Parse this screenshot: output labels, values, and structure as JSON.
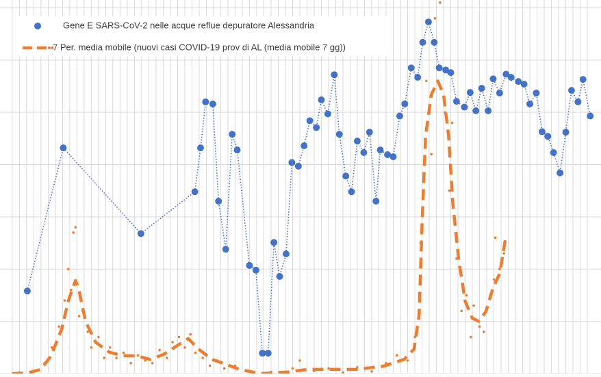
{
  "chart_data": {
    "type": "scatter-line",
    "xlim": [
      -1.7,
      81.9
    ],
    "xticks": [
      0,
      1,
      2,
      3,
      4,
      5,
      6,
      7,
      8,
      9,
      10,
      11,
      12,
      13,
      14,
      15,
      16,
      17,
      18,
      19,
      20,
      21,
      22,
      23,
      24,
      25,
      26,
      27,
      28,
      29,
      30,
      31,
      32,
      33,
      34,
      35,
      36,
      37,
      38,
      39,
      40,
      41,
      42,
      43,
      44,
      45,
      46,
      47,
      48,
      49,
      50,
      51,
      52,
      53,
      54,
      55,
      56,
      57,
      58,
      59,
      60,
      61,
      62,
      63,
      64,
      65,
      66,
      67,
      68,
      69,
      70,
      71,
      72,
      73,
      74,
      75,
      76,
      77,
      78,
      79,
      80
    ],
    "ylim": [
      0,
      7.15
    ],
    "yticks": [
      0,
      1,
      2,
      3,
      4,
      5,
      6,
      7
    ],
    "grid": true,
    "legend": "top-left",
    "series": [
      {
        "name": "Gene E SARS-CoV-2 nelle acque reflue depuratore Alessandria",
        "color": "#4472c4",
        "x": [
          2.1,
          7.1,
          17.9,
          25.4,
          26.2,
          26.9,
          27.9,
          28.7,
          29.7,
          30.6,
          31.3,
          33.0,
          33.9,
          34.8,
          35.6,
          36.4,
          37.2,
          38.1,
          38.9,
          39.8,
          40.6,
          41.4,
          42.3,
          43.0,
          43.9,
          44.8,
          45.5,
          46.4,
          47.2,
          48.0,
          48.9,
          49.7,
          50.6,
          51.2,
          52.2,
          53.0,
          53.9,
          54.6,
          55.5,
          56.4,
          57.1,
          57.9,
          58.7,
          59.4,
          60.3,
          61.0,
          61.8,
          62.9,
          63.7,
          64.5,
          65.3,
          66.2,
          66.9,
          67.8,
          68.7,
          69.4,
          70.4,
          71.2,
          72.0,
          72.9,
          73.7,
          74.5,
          75.3,
          76.2,
          77.0,
          77.8,
          78.7,
          79.4,
          80.4
        ],
        "values": [
          1.58,
          4.32,
          2.68,
          3.48,
          4.32,
          5.2,
          5.16,
          3.3,
          2.38,
          4.58,
          4.28,
          2.07,
          1.98,
          0.39,
          0.39,
          2.51,
          1.86,
          2.29,
          4.04,
          3.97,
          4.36,
          4.84,
          4.71,
          5.24,
          4.97,
          5.72,
          4.58,
          3.78,
          3.48,
          4.45,
          4.23,
          4.62,
          3.3,
          4.28,
          4.19,
          4.15,
          4.93,
          5.16,
          5.85,
          5.67,
          6.34,
          6.73,
          6.34,
          5.85,
          5.81,
          5.76,
          5.21,
          5.1,
          5.38,
          5.03,
          5.46,
          5.03,
          5.64,
          5.37,
          5.73,
          5.67,
          5.59,
          5.54,
          5.16,
          5.37,
          4.63,
          4.54,
          4.23,
          3.84,
          4.62,
          5.42,
          5.2,
          5.63,
          4.93
        ]
      },
      {
        "name": "7 Per. media mobile (nuovi casi COVID-19 prov di AL (media mobile 7 gg))",
        "color": "#ed7d31",
        "x": [
          0,
          2.1,
          4.0,
          5.4,
          6.9,
          7.8,
          8.8,
          9.2,
          10.2,
          11.6,
          13.5,
          15.4,
          17.3,
          19.2,
          21.1,
          23.0,
          24.5,
          25.9,
          27.8,
          29.7,
          31.6,
          34.5,
          38.3,
          41.1,
          44.0,
          47.8,
          51.6,
          54.5,
          55.9,
          56.6,
          57.0,
          57.5,
          58.3,
          59.2,
          60.0,
          60.7,
          61.3,
          62.1,
          63.0,
          64.0,
          64.9,
          65.9,
          66.9,
          67.8,
          68.6
        ],
        "values": [
          0,
          0.01,
          0.08,
          0.34,
          0.86,
          1.39,
          1.78,
          1.65,
          1.0,
          0.6,
          0.41,
          0.34,
          0.34,
          0.27,
          0.37,
          0.54,
          0.67,
          0.47,
          0.27,
          0.18,
          0.08,
          0,
          0.03,
          0.08,
          0.08,
          0.08,
          0.14,
          0.27,
          0.47,
          1.12,
          2.83,
          4.55,
          5.34,
          5.6,
          5.34,
          4.55,
          3.24,
          2.19,
          1.39,
          1.06,
          1.0,
          1.19,
          1.65,
          1.91,
          2.57
        ],
        "daily_x": [
          1,
          3,
          4.5,
          5.5,
          6.5,
          7.3,
          7.8,
          8.2,
          8.5,
          8.8,
          9.3,
          9.8,
          10.5,
          11,
          12,
          12.8,
          13.6,
          14.5,
          15.5,
          16.5,
          17.5,
          18.5,
          19.5,
          20.5,
          21.5,
          22.3,
          23.2,
          24,
          24.8,
          25.5,
          26.5,
          27.5,
          28.5,
          29.5,
          31,
          33,
          36,
          39,
          40,
          42,
          44,
          46,
          48,
          50,
          52,
          53.5,
          55,
          56,
          56.8,
          57.3,
          57.6,
          58.3,
          58.8,
          59.5,
          60.2,
          60.8,
          61.2,
          61.8,
          62.5,
          63.2,
          63.8,
          64.2,
          65,
          65.6,
          66.5,
          67.2,
          67.8,
          68.4,
          67
        ],
        "daily_values": [
          0.02,
          0.05,
          0.2,
          0.5,
          0.9,
          1.4,
          2.0,
          1.6,
          2.7,
          2.8,
          1.1,
          1.2,
          0.8,
          0.5,
          0.7,
          0.3,
          0.5,
          0.3,
          0.4,
          0.2,
          0.35,
          0.25,
          0.2,
          0.45,
          0.3,
          0.6,
          0.7,
          0.5,
          0.75,
          0.4,
          0.3,
          0.15,
          0.25,
          0.1,
          0.15,
          0.05,
          0.03,
          0.1,
          0.25,
          0.05,
          0.1,
          0.02,
          0.12,
          0.04,
          0.2,
          0.35,
          0.25,
          0.7,
          2.5,
          3.8,
          5.6,
          4.2,
          6.8,
          7.1,
          5.0,
          3.5,
          4.8,
          2.2,
          1.2,
          1.5,
          0.7,
          1.3,
          0.9,
          0.8,
          1.5,
          2.6,
          2.0,
          2.3,
          1.8
        ]
      }
    ]
  }
}
